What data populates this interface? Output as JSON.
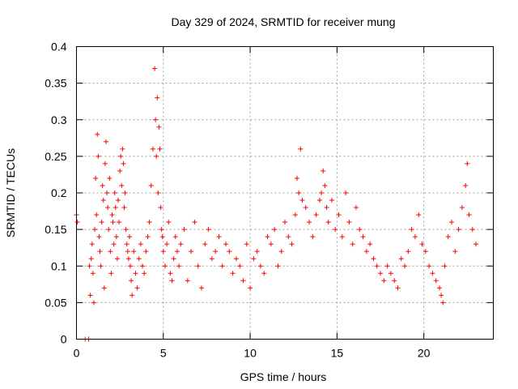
{
  "chart_data": {
    "type": "scatter",
    "title": "Day 329 of 2024, SRMTID for receiver mung",
    "xlabel": "GPS time / hours",
    "ylabel": "SRMTID / TECUs",
    "xlim": [
      0,
      24
    ],
    "ylim": [
      0,
      0.4
    ],
    "x_ticks": [
      0,
      5,
      10,
      15,
      20
    ],
    "x_tick_labels": [
      "0",
      "5",
      "10",
      "15",
      "20"
    ],
    "y_ticks": [
      0,
      0.05,
      0.1,
      0.15,
      0.2,
      0.25,
      0.3,
      0.35,
      0.4
    ],
    "y_tick_labels": [
      "0",
      "0.05",
      "0.1",
      "0.15",
      "0.2",
      "0.25",
      "0.3",
      "0.35",
      "0.4"
    ],
    "grid": true,
    "marker": "+",
    "series": [
      {
        "name": "SRMTID",
        "color": "#ff0000",
        "x": [
          0.0,
          0.05,
          0.5,
          0.7,
          0.75,
          0.8,
          0.85,
          0.9,
          0.95,
          1.0,
          1.05,
          1.1,
          1.15,
          1.2,
          1.25,
          1.3,
          1.35,
          1.4,
          1.45,
          1.5,
          1.55,
          1.6,
          1.65,
          1.7,
          1.75,
          1.8,
          1.85,
          1.9,
          1.95,
          2.0,
          2.05,
          2.1,
          2.15,
          2.2,
          2.25,
          2.3,
          2.35,
          2.4,
          2.45,
          2.5,
          2.55,
          2.6,
          2.65,
          2.7,
          2.75,
          2.8,
          2.85,
          2.9,
          2.95,
          3.0,
          3.05,
          3.1,
          3.15,
          3.2,
          3.3,
          3.4,
          3.5,
          3.6,
          3.7,
          3.8,
          3.9,
          4.0,
          4.1,
          4.2,
          4.3,
          4.4,
          4.5,
          4.55,
          4.6,
          4.65,
          4.7,
          4.75,
          4.8,
          4.85,
          4.9,
          4.95,
          5.0,
          5.1,
          5.2,
          5.3,
          5.4,
          5.5,
          5.6,
          5.7,
          5.8,
          5.9,
          6.0,
          6.2,
          6.4,
          6.6,
          6.8,
          7.0,
          7.2,
          7.4,
          7.6,
          7.8,
          8.0,
          8.2,
          8.4,
          8.6,
          8.8,
          9.0,
          9.2,
          9.4,
          9.6,
          9.8,
          10.0,
          10.2,
          10.4,
          10.6,
          10.8,
          11.0,
          11.2,
          11.4,
          11.6,
          11.8,
          12.0,
          12.2,
          12.4,
          12.6,
          12.7,
          12.8,
          12.9,
          13.0,
          13.2,
          13.4,
          13.6,
          13.8,
          14.0,
          14.1,
          14.2,
          14.3,
          14.4,
          14.5,
          14.7,
          14.9,
          15.1,
          15.3,
          15.5,
          15.7,
          15.9,
          16.1,
          16.3,
          16.5,
          16.7,
          16.9,
          17.1,
          17.3,
          17.5,
          17.7,
          17.9,
          18.1,
          18.3,
          18.5,
          18.7,
          18.9,
          19.1,
          19.3,
          19.5,
          19.7,
          19.9,
          20.1,
          20.3,
          20.5,
          20.7,
          20.9,
          21.0,
          21.1,
          21.2,
          21.4,
          21.6,
          21.8,
          22.0,
          22.2,
          22.4,
          22.5,
          22.6,
          22.8,
          23.0
        ],
        "y": [
          0.17,
          0.16,
          0.0,
          0.0,
          0.1,
          0.06,
          0.11,
          0.13,
          0.09,
          0.05,
          0.15,
          0.22,
          0.17,
          0.28,
          0.25,
          0.14,
          0.12,
          0.1,
          0.16,
          0.21,
          0.19,
          0.07,
          0.24,
          0.27,
          0.2,
          0.18,
          0.15,
          0.22,
          0.12,
          0.09,
          0.17,
          0.16,
          0.13,
          0.2,
          0.18,
          0.14,
          0.11,
          0.19,
          0.16,
          0.23,
          0.25,
          0.21,
          0.26,
          0.24,
          0.18,
          0.2,
          0.15,
          0.13,
          0.12,
          0.11,
          0.14,
          0.1,
          0.08,
          0.06,
          0.12,
          0.09,
          0.07,
          0.11,
          0.13,
          0.1,
          0.09,
          0.12,
          0.14,
          0.16,
          0.21,
          0.26,
          0.37,
          0.3,
          0.25,
          0.33,
          0.2,
          0.29,
          0.26,
          0.18,
          0.15,
          0.14,
          0.12,
          0.1,
          0.13,
          0.16,
          0.09,
          0.08,
          0.11,
          0.14,
          0.12,
          0.1,
          0.13,
          0.15,
          0.08,
          0.12,
          0.16,
          0.1,
          0.07,
          0.13,
          0.15,
          0.11,
          0.12,
          0.14,
          0.1,
          0.13,
          0.12,
          0.09,
          0.11,
          0.1,
          0.08,
          0.13,
          0.07,
          0.11,
          0.12,
          0.1,
          0.09,
          0.14,
          0.13,
          0.15,
          0.1,
          0.12,
          0.16,
          0.14,
          0.13,
          0.17,
          0.22,
          0.2,
          0.26,
          0.19,
          0.18,
          0.16,
          0.14,
          0.17,
          0.19,
          0.2,
          0.23,
          0.21,
          0.18,
          0.16,
          0.19,
          0.15,
          0.17,
          0.14,
          0.2,
          0.16,
          0.13,
          0.18,
          0.15,
          0.14,
          0.12,
          0.13,
          0.11,
          0.1,
          0.09,
          0.08,
          0.1,
          0.09,
          0.08,
          0.07,
          0.11,
          0.1,
          0.12,
          0.15,
          0.14,
          0.17,
          0.13,
          0.12,
          0.1,
          0.09,
          0.08,
          0.07,
          0.06,
          0.05,
          0.1,
          0.14,
          0.16,
          0.12,
          0.15,
          0.18,
          0.21,
          0.24,
          0.17,
          0.15,
          0.13
        ]
      }
    ]
  }
}
